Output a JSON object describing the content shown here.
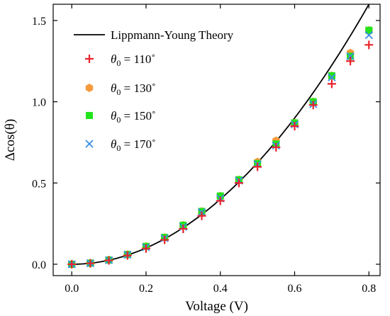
{
  "chart_data": {
    "type": "scatter",
    "xlabel": "Voltage (V)",
    "ylabel": "Δcos(θ)",
    "xlim": [
      -0.05,
      0.83
    ],
    "ylim": [
      -0.07,
      1.6
    ],
    "xticks": [
      0.0,
      0.2,
      0.4,
      0.6,
      0.8
    ],
    "xtick_labels": [
      "0.0",
      "0.2",
      "0.4",
      "0.6",
      "0.8"
    ],
    "yticks": [
      0.0,
      0.5,
      1.0,
      1.5
    ],
    "ytick_labels": [
      "0.0",
      "0.5",
      "1.0",
      "1.5"
    ],
    "grid": false,
    "legend_position": "top-left",
    "theory": {
      "name": "Lippmann-Young Theory",
      "color": "#000000",
      "coefficient": 2.5,
      "x": [
        0.0,
        0.1,
        0.2,
        0.3,
        0.4,
        0.5,
        0.6,
        0.7,
        0.8
      ],
      "y": [
        0.0,
        0.025,
        0.1,
        0.225,
        0.4,
        0.625,
        0.9,
        1.225,
        1.6
      ]
    },
    "series": [
      {
        "name_prefix": "θ",
        "name_sub": "0",
        "name_rest": " = 110˚",
        "marker": "plus",
        "color": "#e8242c",
        "x": [
          0.0,
          0.05,
          0.1,
          0.15,
          0.2,
          0.25,
          0.3,
          0.35,
          0.4,
          0.45,
          0.5,
          0.55,
          0.6,
          0.65,
          0.7,
          0.75,
          0.8
        ],
        "y": [
          0.0,
          0.006,
          0.024,
          0.054,
          0.097,
          0.15,
          0.218,
          0.298,
          0.39,
          0.5,
          0.6,
          0.72,
          0.85,
          0.98,
          1.11,
          1.25,
          1.35
        ]
      },
      {
        "name_prefix": "θ",
        "name_sub": "0",
        "name_rest": " = 130˚",
        "marker": "hexagon",
        "color": "#f59a3c",
        "x": [
          0.0,
          0.05,
          0.1,
          0.15,
          0.2,
          0.25,
          0.3,
          0.35,
          0.4,
          0.45,
          0.5,
          0.55,
          0.6,
          0.65,
          0.7,
          0.75,
          0.8
        ],
        "y": [
          0.0,
          0.007,
          0.026,
          0.06,
          0.11,
          0.165,
          0.24,
          0.325,
          0.42,
          0.52,
          0.63,
          0.76,
          0.87,
          1.0,
          1.16,
          1.3,
          1.44
        ]
      },
      {
        "name_prefix": "θ",
        "name_sub": "0",
        "name_rest": " = 150˚",
        "marker": "square",
        "color": "#22e41c",
        "x": [
          0.0,
          0.05,
          0.1,
          0.15,
          0.2,
          0.25,
          0.3,
          0.35,
          0.4,
          0.45,
          0.5,
          0.55,
          0.6,
          0.65,
          0.7,
          0.75,
          0.8
        ],
        "y": [
          0.0,
          0.007,
          0.026,
          0.06,
          0.11,
          0.165,
          0.24,
          0.325,
          0.42,
          0.52,
          0.62,
          0.74,
          0.87,
          1.0,
          1.16,
          1.28,
          1.44
        ]
      },
      {
        "name_prefix": "θ",
        "name_sub": "0",
        "name_rest": " = 170˚",
        "marker": "x",
        "color": "#3a8ee6",
        "x": [
          0.0,
          0.05,
          0.1,
          0.15,
          0.2,
          0.25,
          0.3,
          0.35,
          0.4,
          0.45,
          0.5,
          0.55,
          0.6,
          0.65,
          0.7,
          0.75,
          0.8
        ],
        "y": [
          0.0,
          0.006,
          0.025,
          0.058,
          0.105,
          0.16,
          0.23,
          0.32,
          0.405,
          0.515,
          0.615,
          0.73,
          0.86,
          0.985,
          1.15,
          1.28,
          1.41
        ]
      }
    ]
  }
}
